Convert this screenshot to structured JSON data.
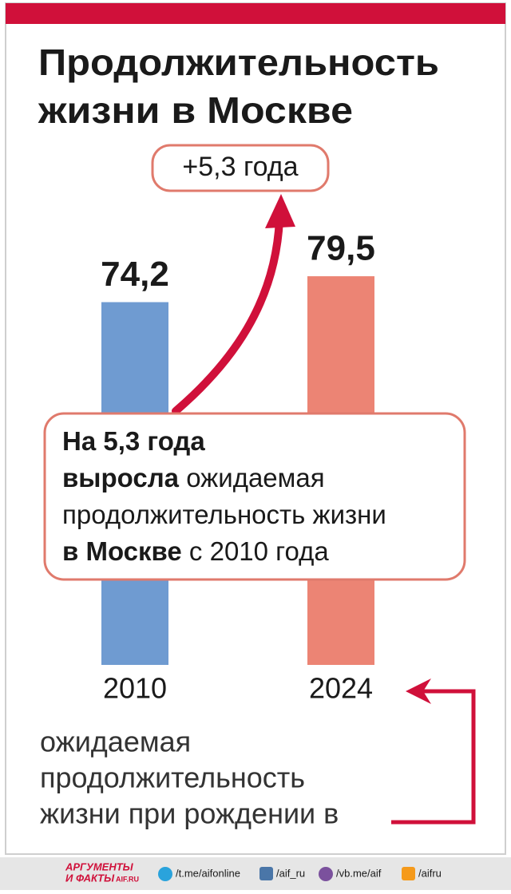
{
  "chart_data": {
    "type": "bar",
    "title": [
      "Продолжительность",
      "жизни в Москве"
    ],
    "annotation": "+5,3 года",
    "categories": [
      "2010",
      "2024"
    ],
    "values": [
      74.2,
      79.5
    ],
    "value_labels": [
      "74,2",
      "79,5"
    ],
    "colors": [
      "#6f9bd1",
      "#ec8474"
    ],
    "ylim": [
      0,
      80
    ],
    "callout": [
      [
        {
          "text": "На 5,3 года",
          "bold": true
        }
      ],
      [
        {
          "text": "выросла",
          "bold": true
        },
        {
          "text": " ожидаемая",
          "bold": false
        }
      ],
      [
        {
          "text": "продолжительность жизни",
          "bold": false
        }
      ],
      [
        {
          "text": "в Москве",
          "bold": true
        },
        {
          "text": " с 2010 года",
          "bold": false
        }
      ]
    ],
    "note": [
      "ожидаемая",
      "продолжительность",
      "жизни при рождении в"
    ]
  },
  "footer": {
    "logo": [
      "АРГУМЕНТЫ",
      "И ФАКТЫ"
    ],
    "logo_site": "AIF.RU",
    "links": [
      "/t.me/aifonline",
      "/aif_ru",
      "/vb.me/aif",
      "/aifru"
    ]
  }
}
